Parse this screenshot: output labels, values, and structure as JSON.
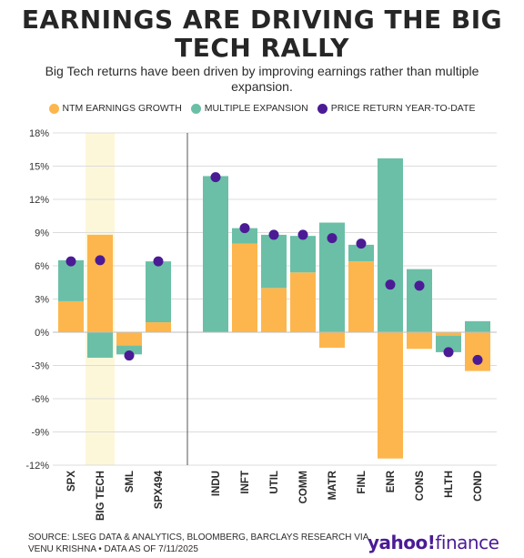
{
  "title_lines": [
    "EARNINGS ARE DRIVING THE BIG",
    "TECH RALLY"
  ],
  "subtitle": "Big Tech returns have been driven by improving earnings rather than multiple expansion.",
  "source": "SOURCE: LSEG DATA & ANALYTICS, BLOOMBERG, BARCLAYS RESEARCH VIA VENU KRISHNA • DATA AS OF 7/11/2025",
  "logo": {
    "main": "yahoo!",
    "suffix": "finance"
  },
  "colors": {
    "earnings": "#FDB64D",
    "multiple": "#6BBFA7",
    "price": "#4B1B95",
    "highlight": "#FDF7D9",
    "grid": "#dcdcdc",
    "divider": "#555555"
  },
  "chart_data": {
    "type": "bar",
    "stacked": true,
    "categories": [
      "SPX",
      "BIG TECH",
      "SML",
      "SPX494",
      "INDU",
      "INFT",
      "UTIL",
      "COMM",
      "MATR",
      "FINL",
      "ENR",
      "CONS",
      "HLTH",
      "COND"
    ],
    "series": [
      {
        "name": "NTM EARNINGS GROWTH",
        "kind": "bar",
        "values": [
          2.8,
          8.8,
          -1.2,
          0.9,
          0.0,
          8.0,
          4.0,
          5.4,
          -1.4,
          6.4,
          -11.4,
          -1.5,
          -0.3,
          -3.5
        ]
      },
      {
        "name": "MULTIPLE EXPANSION",
        "kind": "bar",
        "values": [
          3.7,
          -2.3,
          -0.8,
          5.5,
          14.1,
          1.4,
          4.8,
          3.3,
          9.9,
          1.5,
          15.7,
          5.7,
          -1.5,
          1.0
        ]
      },
      {
        "name": "PRICE RETURN YEAR-TO-DATE",
        "kind": "dot",
        "values": [
          6.4,
          6.5,
          -2.1,
          6.4,
          14.0,
          9.4,
          8.8,
          8.8,
          8.5,
          8.0,
          4.3,
          4.2,
          -1.8,
          -2.5
        ]
      }
    ],
    "yticks": [
      "18%",
      "15%",
      "12%",
      "9%",
      "6%",
      "3%",
      "0%",
      "-3%",
      "-6%",
      "-9%",
      "-12%"
    ],
    "ytick_values": [
      18,
      15,
      12,
      9,
      6,
      3,
      0,
      -3,
      -6,
      -9,
      -12
    ],
    "ylim": [
      -12,
      18
    ],
    "highlight_category": "BIG TECH",
    "grid": true,
    "legend_position": "top-center"
  }
}
